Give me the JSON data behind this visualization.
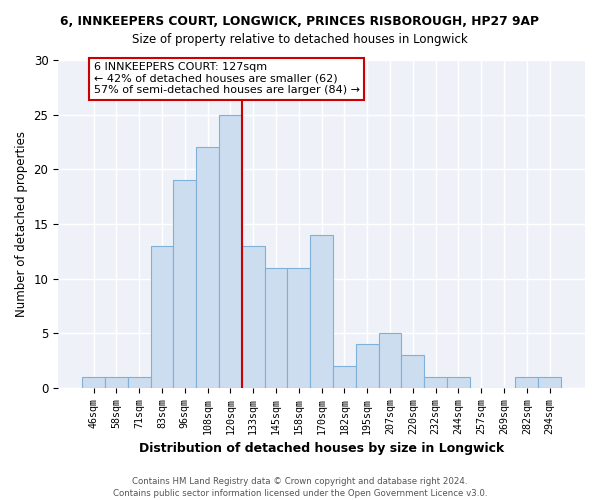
{
  "title1": "6, INNKEEPERS COURT, LONGWICK, PRINCES RISBOROUGH, HP27 9AP",
  "title2": "Size of property relative to detached houses in Longwick",
  "xlabel": "Distribution of detached houses by size in Longwick",
  "ylabel": "Number of detached properties",
  "bins": [
    "46sqm",
    "58sqm",
    "71sqm",
    "83sqm",
    "96sqm",
    "108sqm",
    "120sqm",
    "133sqm",
    "145sqm",
    "158sqm",
    "170sqm",
    "182sqm",
    "195sqm",
    "207sqm",
    "220sqm",
    "232sqm",
    "244sqm",
    "257sqm",
    "269sqm",
    "282sqm",
    "294sqm"
  ],
  "values": [
    1,
    1,
    1,
    13,
    19,
    22,
    25,
    13,
    11,
    11,
    14,
    2,
    4,
    5,
    3,
    1,
    1,
    0,
    0,
    1,
    1
  ],
  "bar_color": "#ccddf0",
  "bar_edge_color": "#7fb0d8",
  "vline_color": "#cc0000",
  "annotation_text": "6 INNKEEPERS COURT: 127sqm\n← 42% of detached houses are smaller (62)\n57% of semi-detached houses are larger (84) →",
  "annotation_box_color": "white",
  "annotation_box_edge_color": "#cc0000",
  "footer": "Contains HM Land Registry data © Crown copyright and database right 2024.\nContains public sector information licensed under the Open Government Licence v3.0.",
  "ylim": [
    0,
    30
  ],
  "yticks": [
    0,
    5,
    10,
    15,
    20,
    25,
    30
  ],
  "bar_width": 1.0,
  "background_color": "#eef2f8",
  "vline_position": 6.5
}
